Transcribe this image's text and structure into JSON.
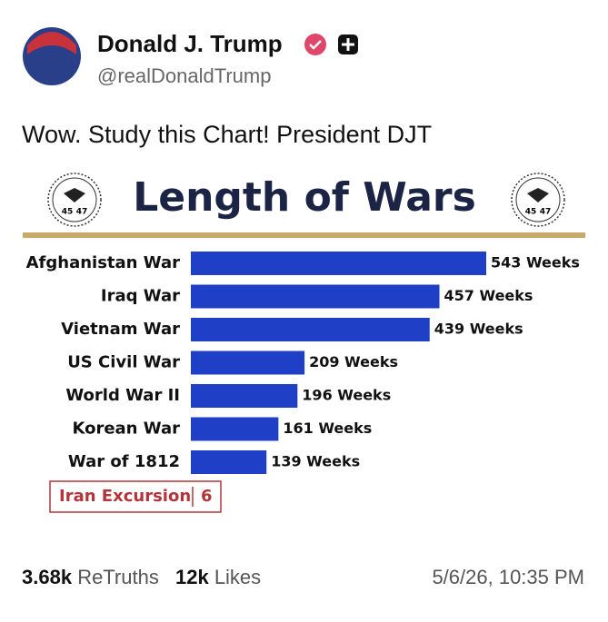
{
  "post": {
    "author": "Donald J. Trump",
    "handle": "@realDonaldTrump",
    "text": "Wow. Study this Chart! President DJT"
  },
  "chart_data": {
    "type": "bar",
    "orientation": "horizontal",
    "title": "Length of Wars",
    "seal_numbers": [
      "45",
      "47"
    ],
    "categories": [
      "Afghanistan War",
      "Iraq War",
      "Vietnam War",
      "US Civil War",
      "World War II",
      "Korean War",
      "War of 1812"
    ],
    "values": [
      543,
      457,
      439,
      209,
      196,
      161,
      139
    ],
    "value_labels": [
      "543 Weeks",
      "457 Weeks",
      "439 Weeks",
      "209 Weeks",
      "196 Weeks",
      "161 Weeks",
      "139 Weeks"
    ],
    "color": "#1f3fc6",
    "annotation": {
      "label": "Iran Excursion",
      "value": 6
    }
  },
  "footer": {
    "retruths_count": "3.68k",
    "retruths_label": "ReTruths",
    "likes_count": "12k",
    "likes_label": "Likes",
    "timestamp": "5/6/26, 10:35 PM"
  }
}
